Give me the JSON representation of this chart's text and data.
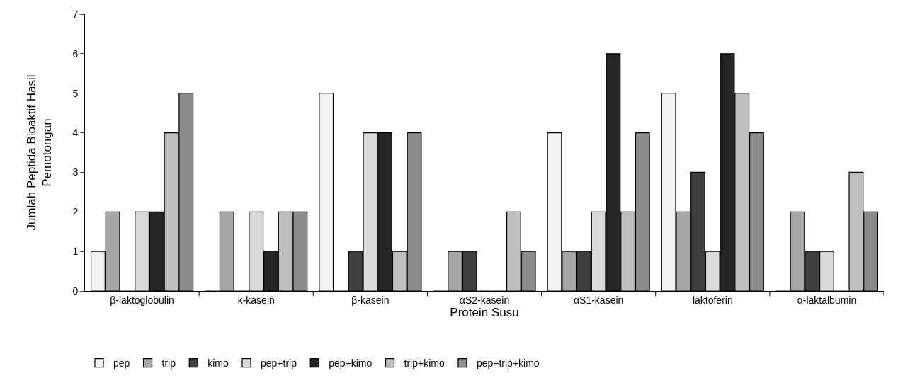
{
  "chart_data": {
    "type": "bar",
    "xlabel": "Protein Susu",
    "ylabel": "Jumlah Peptida Bioaktif Hasil Pemotongan",
    "categories": [
      "β-laktoglobulin",
      "κ-kasein",
      "β-kasein",
      "αS2-kasein",
      "αS1-kasein",
      "laktoferin",
      "α-laktalbumin"
    ],
    "series": [
      {
        "name": "pep",
        "color": "#f2f2f2",
        "values": [
          1,
          0,
          5,
          0,
          4,
          5,
          0
        ]
      },
      {
        "name": "trip",
        "color": "#a6a6a6",
        "values": [
          2,
          2,
          0,
          1,
          1,
          2,
          2
        ]
      },
      {
        "name": "kimo",
        "color": "#404040",
        "values": [
          0,
          0,
          1,
          1,
          1,
          3,
          1
        ]
      },
      {
        "name": "pep+trip",
        "color": "#d9d9d9",
        "values": [
          2,
          2,
          4,
          0,
          2,
          1,
          1
        ]
      },
      {
        "name": "pep+kimo",
        "color": "#262626",
        "values": [
          2,
          1,
          4,
          0,
          6,
          6,
          0
        ]
      },
      {
        "name": "trip+kimo",
        "color": "#bfbfbf",
        "values": [
          4,
          2,
          1,
          2,
          2,
          5,
          3
        ]
      },
      {
        "name": "pep+trip+kimo",
        "color": "#8c8c8c",
        "values": [
          5,
          2,
          4,
          1,
          4,
          4,
          2
        ]
      }
    ],
    "ylim": [
      0,
      7
    ],
    "yticks": [
      0,
      1,
      2,
      3,
      4,
      5,
      6,
      7
    ],
    "grid": false,
    "legend": "bottom"
  }
}
